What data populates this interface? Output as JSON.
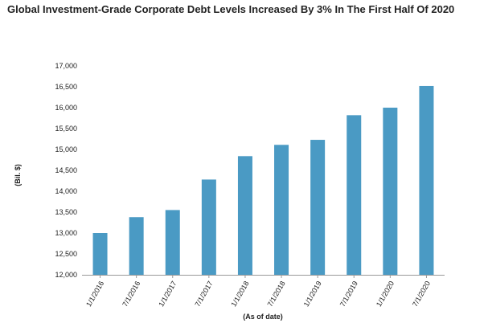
{
  "chart_data": {
    "type": "bar",
    "title": "Global Investment-Grade Corporate Debt Levels Increased By 3% In The First Half Of 2020",
    "xlabel": "(As of date)",
    "ylabel": "(Bil. $)",
    "categories": [
      "1/1/2016",
      "7/1/2016",
      "1/1/2017",
      "7/1/2017",
      "1/1/2018",
      "7/1/2018",
      "1/1/2019",
      "7/1/2019",
      "1/1/2020",
      "7/1/2020"
    ],
    "values": [
      13000,
      13380,
      13550,
      14280,
      14840,
      15110,
      15230,
      15820,
      16000,
      16520
    ],
    "ylim": [
      12000,
      17000
    ],
    "yticks": [
      "12,000",
      "12,500",
      "13,000",
      "13,500",
      "14,000",
      "14,500",
      "15,000",
      "15,500",
      "16,000",
      "16,500",
      "17,000"
    ],
    "grid": false,
    "legend": "none",
    "bar_color": "#4a9ac4",
    "axis_color": "#999999"
  }
}
